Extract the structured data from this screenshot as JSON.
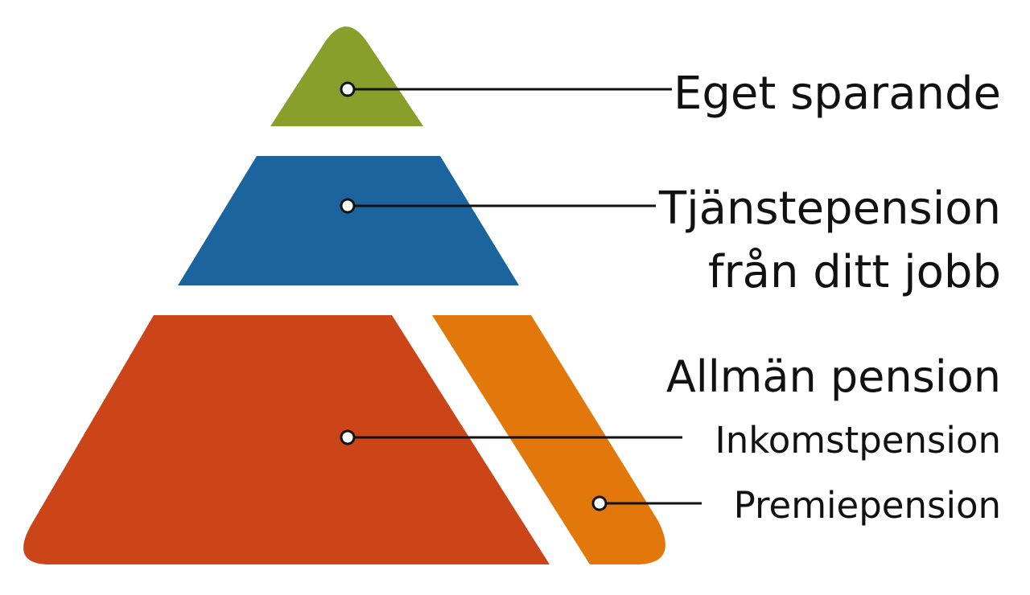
{
  "colors": {
    "top_tier": "#8a9e2c",
    "middle_tier": "#1b649d",
    "bottom_main": "#cb4519",
    "bottom_side": "#e2780b",
    "text": "#111111"
  },
  "labels": {
    "eget_sparande": "Eget sparande",
    "tjanstepension_line1": "Tjänstepension",
    "tjanstepension_line2": "från ditt jobb",
    "allman_pension": "Allmän pension",
    "inkomstpension": "Inkomstpension",
    "premiepension": "Premiepension"
  }
}
